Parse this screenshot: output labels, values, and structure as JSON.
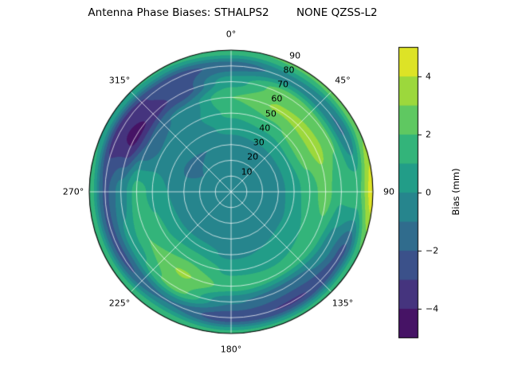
{
  "chart_data": {
    "type": "heatmap",
    "projection": "polar",
    "title": "Antenna Phase Biases: STHALPS2        NONE QZSS-L2",
    "azimuth_ticks": [
      {
        "label": "0°",
        "deg": 0
      },
      {
        "label": "45°",
        "deg": 45
      },
      {
        "label": "90",
        "deg": 90
      },
      {
        "label": "135°",
        "deg": 135
      },
      {
        "label": "180°",
        "deg": 180
      },
      {
        "label": "225°",
        "deg": 225
      },
      {
        "label": "270°",
        "deg": 270
      },
      {
        "label": "315°",
        "deg": 315
      }
    ],
    "radial_ticks": [
      {
        "label": "10",
        "value": 10
      },
      {
        "label": "20",
        "value": 20
      },
      {
        "label": "30",
        "value": 30
      },
      {
        "label": "40",
        "value": 40
      },
      {
        "label": "50",
        "value": 50
      },
      {
        "label": "60",
        "value": 60
      },
      {
        "label": "70",
        "value": 70
      },
      {
        "label": "80",
        "value": 80
      },
      {
        "label": "90",
        "value": 90
      }
    ],
    "radial_axis_max": 90,
    "radial_label_angle_deg": 22.5,
    "grid_lines": {
      "circle_interval": 10,
      "spoke_interval_deg": 45
    },
    "colorbar": {
      "label": "Bias (mm)",
      "colormap": "viridis",
      "vmin": -5,
      "vmax": 5,
      "level_step": 1,
      "ticks": [
        {
          "label": "−4",
          "value": -4
        },
        {
          "label": "−2",
          "value": -2
        },
        {
          "label": "0",
          "value": 0
        },
        {
          "label": "2",
          "value": 2
        },
        {
          "label": "4",
          "value": 4
        }
      ],
      "band_colors": [
        "#461365",
        "#45347e",
        "#3b518a",
        "#306c8d",
        "#26858d",
        "#229d88",
        "#33b47a",
        "#5fc861",
        "#9cd83c",
        "#dde326"
      ]
    },
    "grid": {
      "azimuth_deg": [
        0,
        30,
        60,
        90,
        120,
        150,
        180,
        210,
        240,
        270,
        300,
        330
      ],
      "zenith_deg": [
        0,
        10,
        20,
        30,
        40,
        50,
        60,
        70,
        80,
        90
      ],
      "bias_mm": [
        [
          -0.8,
          -0.8,
          -0.8,
          -0.8,
          -0.8,
          -0.8,
          -0.8,
          -0.8,
          -0.8,
          -0.8,
          -0.8,
          -0.8
        ],
        [
          -0.8,
          -0.8,
          -0.8,
          -0.8,
          -0.8,
          -0.8,
          -0.9,
          -0.9,
          -0.8,
          -0.8,
          -0.8,
          -0.8
        ],
        [
          -0.9,
          -0.9,
          -0.8,
          -0.8,
          -0.9,
          -0.9,
          -1.0,
          -1.0,
          -0.9,
          -0.9,
          -1.0,
          -0.9
        ],
        [
          -0.7,
          -0.5,
          -0.4,
          -0.4,
          -0.6,
          -0.8,
          -1.0,
          -0.8,
          -0.7,
          -0.8,
          -1.1,
          -1.0
        ],
        [
          0.3,
          0.6,
          0.9,
          0.6,
          0.2,
          0.0,
          -0.2,
          0.4,
          0.2,
          0.0,
          -0.7,
          -0.4
        ],
        [
          1.2,
          1.9,
          2.3,
          1.6,
          1.0,
          0.8,
          0.8,
          1.9,
          1.2,
          0.8,
          -0.9,
          -0.2
        ],
        [
          2.0,
          3.1,
          3.4,
          2.4,
          1.6,
          1.3,
          1.6,
          3.1,
          2.0,
          1.4,
          -1.9,
          -0.7
        ],
        [
          0.6,
          2.6,
          2.2,
          1.2,
          -0.5,
          -1.5,
          -0.9,
          2.4,
          0.6,
          -0.6,
          -4.3,
          -2.9
        ],
        [
          -1.6,
          -0.5,
          -1.1,
          1.6,
          -2.3,
          -3.1,
          -2.7,
          -1.1,
          -2.3,
          -2.2,
          -3.7,
          -2.6
        ],
        [
          1.8,
          2.2,
          2.6,
          4.6,
          1.8,
          1.4,
          1.4,
          1.8,
          1.8,
          1.8,
          0.8,
          1.2
        ]
      ]
    }
  }
}
